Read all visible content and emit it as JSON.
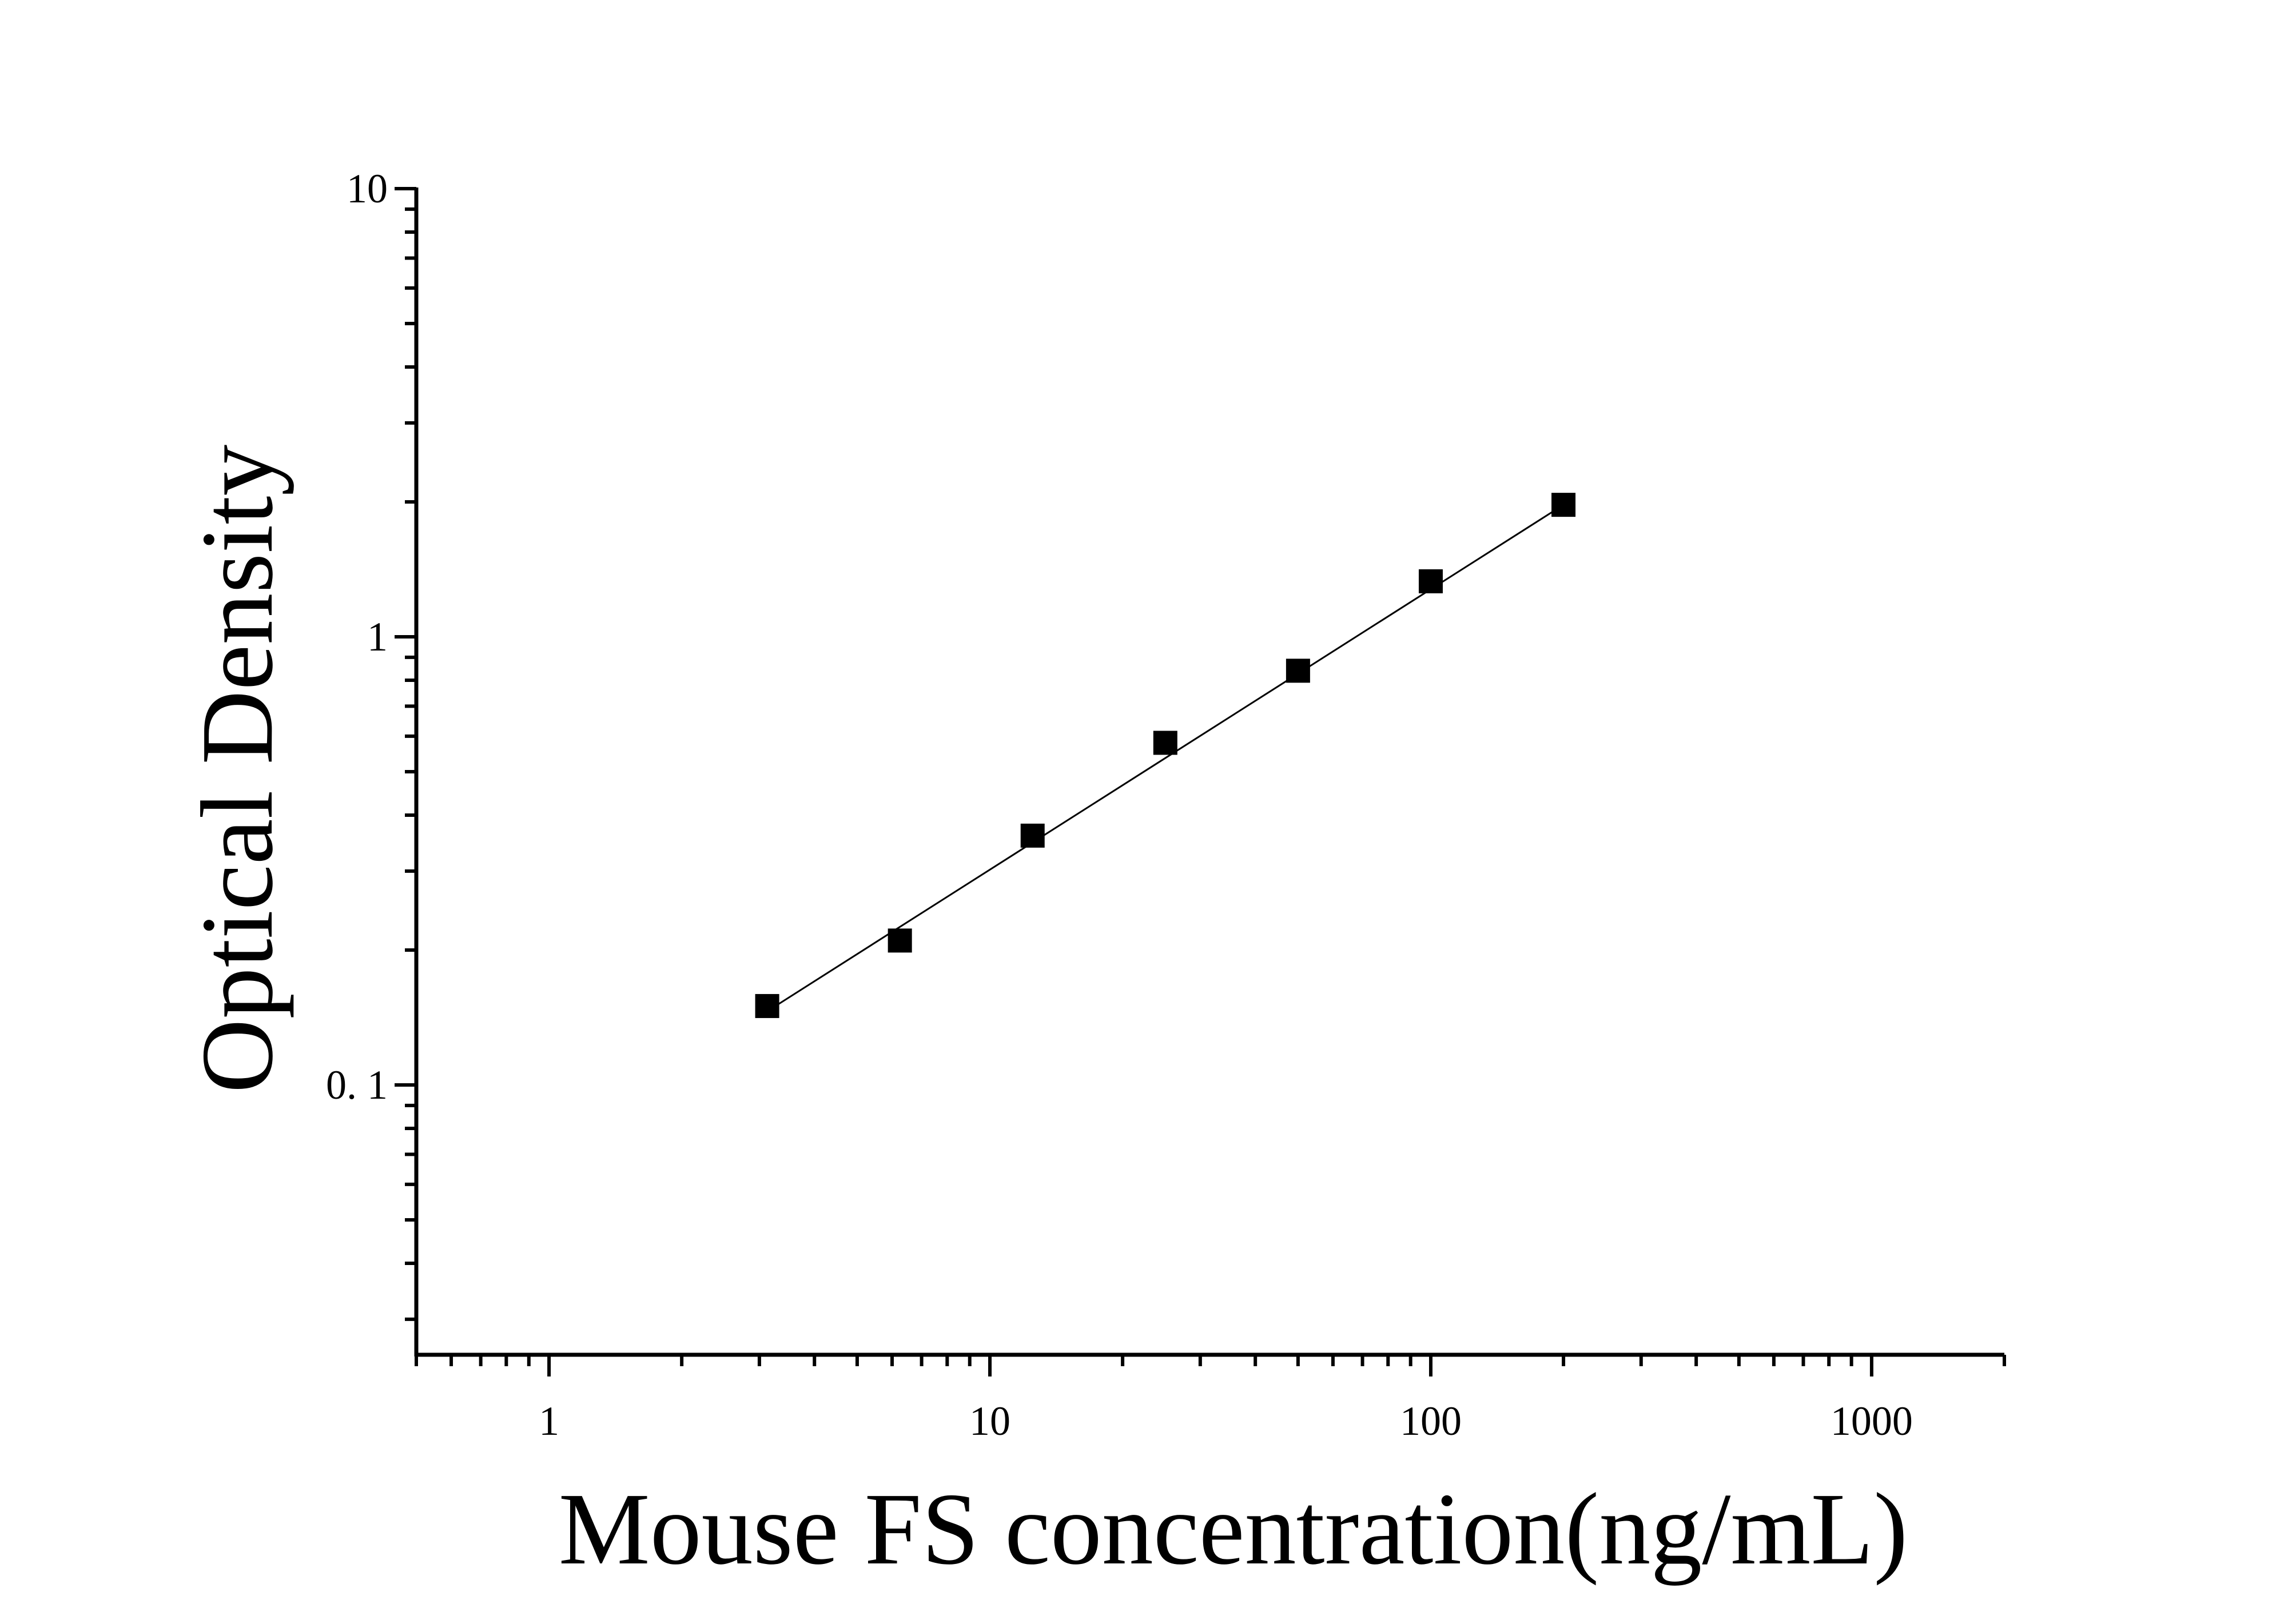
{
  "chart_data": {
    "type": "scatter",
    "xlabel": "Mouse FS concentration(ng/mL)",
    "ylabel": "Optical Density",
    "x_scale": "log",
    "y_scale": "log",
    "xlim": [
      0.5,
      2000
    ],
    "ylim": [
      0.025,
      10
    ],
    "x_ticks": [
      {
        "value": 1,
        "label": "1"
      },
      {
        "value": 10,
        "label": "10"
      },
      {
        "value": 100,
        "label": "100"
      },
      {
        "value": 1000,
        "label": "1000"
      }
    ],
    "y_ticks": [
      {
        "value": 0.1,
        "label": "0. 1"
      },
      {
        "value": 1,
        "label": "1"
      },
      {
        "value": 10,
        "label": "10"
      }
    ],
    "grid": false,
    "marker": "square",
    "color": "#000000",
    "points": [
      {
        "x": 3.125,
        "y": 0.15
      },
      {
        "x": 6.25,
        "y": 0.21
      },
      {
        "x": 12.5,
        "y": 0.36
      },
      {
        "x": 25,
        "y": 0.58
      },
      {
        "x": 50,
        "y": 0.84
      },
      {
        "x": 100,
        "y": 1.33
      },
      {
        "x": 200,
        "y": 1.97
      }
    ],
    "fit_line": {
      "x_start": 3.125,
      "x_end": 200,
      "y_start": 0.146,
      "y_end": 1.97
    }
  }
}
